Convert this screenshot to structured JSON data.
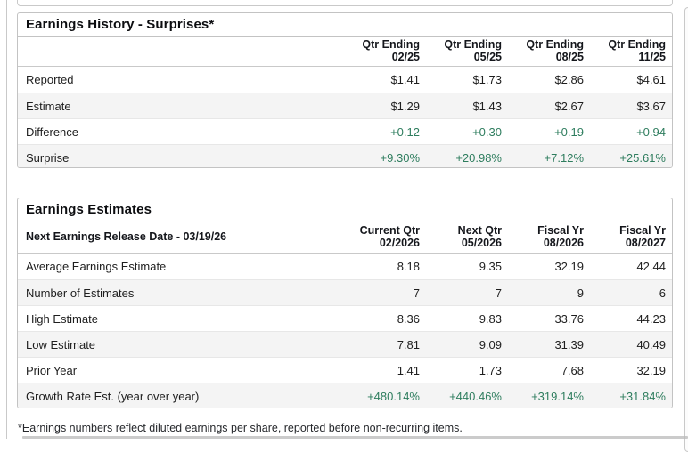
{
  "colors": {
    "positive_value": "#2e7d5e",
    "panel_border": "#c3c3c3",
    "row_separator": "#e7e7e7",
    "shaded_row_background": "#f4f4f4",
    "text": "#1e1e1e"
  },
  "earnings_history": {
    "title": "Earnings History - Surprises*",
    "columns": [
      {
        "line1": "Qtr Ending",
        "line2": "02/25"
      },
      {
        "line1": "Qtr Ending",
        "line2": "05/25"
      },
      {
        "line1": "Qtr Ending",
        "line2": "08/25"
      },
      {
        "line1": "Qtr Ending",
        "line2": "11/25"
      }
    ],
    "rows": [
      {
        "label": "Reported",
        "values": [
          "$1.41",
          "$1.73",
          "$2.86",
          "$4.61"
        ],
        "positive": false
      },
      {
        "label": "Estimate",
        "values": [
          "$1.29",
          "$1.43",
          "$2.67",
          "$3.67"
        ],
        "positive": false
      },
      {
        "label": "Difference",
        "values": [
          "+0.12",
          "+0.30",
          "+0.19",
          "+0.94"
        ],
        "positive": true
      },
      {
        "label": "Surprise",
        "values": [
          "+9.30%",
          "+20.98%",
          "+7.12%",
          "+25.61%"
        ],
        "positive": true
      }
    ]
  },
  "earnings_estimates": {
    "title": "Earnings Estimates",
    "release_date_label": "Next Earnings Release Date - 03/19/26",
    "columns": [
      {
        "line1": "Current Qtr",
        "line2": "02/2026"
      },
      {
        "line1": "Next Qtr",
        "line2": "05/2026"
      },
      {
        "line1": "Fiscal Yr",
        "line2": "08/2026"
      },
      {
        "line1": "Fiscal Yr",
        "line2": "08/2027"
      }
    ],
    "rows": [
      {
        "label": "Average Earnings Estimate",
        "values": [
          "8.18",
          "9.35",
          "32.19",
          "42.44"
        ],
        "positive": false
      },
      {
        "label": "Number of Estimates",
        "values": [
          "7",
          "7",
          "9",
          "6"
        ],
        "positive": false
      },
      {
        "label": "High Estimate",
        "values": [
          "8.36",
          "9.83",
          "33.76",
          "44.23"
        ],
        "positive": false
      },
      {
        "label": "Low Estimate",
        "values": [
          "7.81",
          "9.09",
          "31.39",
          "40.49"
        ],
        "positive": false
      },
      {
        "label": "Prior Year",
        "values": [
          "1.41",
          "1.73",
          "7.68",
          "32.19"
        ],
        "positive": false
      },
      {
        "label": "Growth Rate Est. (year over year)",
        "values": [
          "+480.14%",
          "+440.46%",
          "+319.14%",
          "+31.84%"
        ],
        "positive": true
      }
    ]
  },
  "footnote": "*Earnings numbers reflect diluted earnings per share, reported before non-recurring items."
}
